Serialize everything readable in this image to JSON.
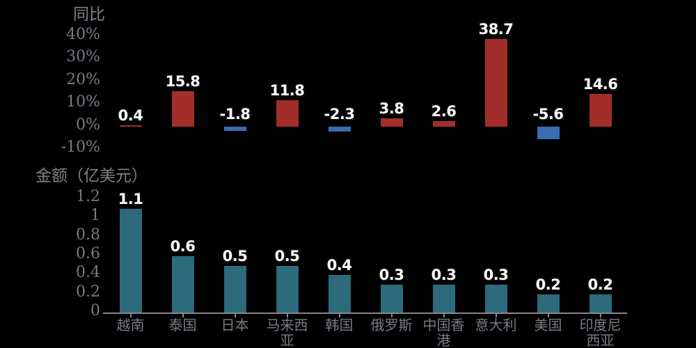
{
  "background": "#000000",
  "colors": {
    "positive_bar": "#A32D2A",
    "negative_bar": "#3A6DB1",
    "amount_bar": "#2C6A7C",
    "axis_text": "#797B85",
    "axis_line": "#85878E",
    "data_label_text": "#FFFFFF",
    "data_label_outline": "#0A0A0A"
  },
  "chart_data": [
    {
      "type": "bar",
      "title": "同比",
      "categories": [
        "越南",
        "泰国",
        "日本",
        "马来西亚",
        "韩国",
        "俄罗斯",
        "中国香港",
        "意大利",
        "美国",
        "印度尼西亚"
      ],
      "values": [
        0.4,
        15.8,
        -1.8,
        11.8,
        -2.3,
        3.8,
        2.6,
        38.7,
        -5.6,
        14.6
      ],
      "data_labels": [
        "0.4",
        "15.8",
        "-1.8",
        "11.8",
        "-2.3",
        "3.8",
        "2.6",
        "38.7",
        "-5.6",
        "14.6"
      ],
      "ylabel": "",
      "ylim": [
        -10,
        45
      ],
      "grid": false,
      "legend": "none",
      "yticks": {
        "values": [
          40,
          30,
          20,
          10,
          0,
          -10
        ],
        "labels": [
          "40%",
          "30%",
          "20%",
          "10%",
          "0%",
          "-10%"
        ]
      },
      "bar_coloring": "by-sign"
    },
    {
      "type": "bar",
      "title": "金额（亿美元）",
      "categories": [
        "越南",
        "泰国",
        "日本",
        "马来西亚",
        "韩国",
        "俄罗斯",
        "中国香港",
        "意大利",
        "美国",
        "印度尼西亚"
      ],
      "values": [
        1.1,
        0.6,
        0.5,
        0.5,
        0.4,
        0.3,
        0.3,
        0.3,
        0.2,
        0.2
      ],
      "data_labels": [
        "1.1",
        "0.6",
        "0.5",
        "0.5",
        "0.4",
        "0.3",
        "0.3",
        "0.3",
        "0.2",
        "0.2"
      ],
      "ylabel": "",
      "ylim": [
        0,
        1.3
      ],
      "grid": false,
      "legend": "none",
      "yticks": {
        "values": [
          1.2,
          1,
          0.8,
          0.6,
          0.4,
          0.2,
          0
        ],
        "labels": [
          "1.2",
          "1",
          "0.8",
          "0.6",
          "0.4",
          "0.2",
          "0"
        ]
      },
      "bar_coloring": "single"
    }
  ]
}
